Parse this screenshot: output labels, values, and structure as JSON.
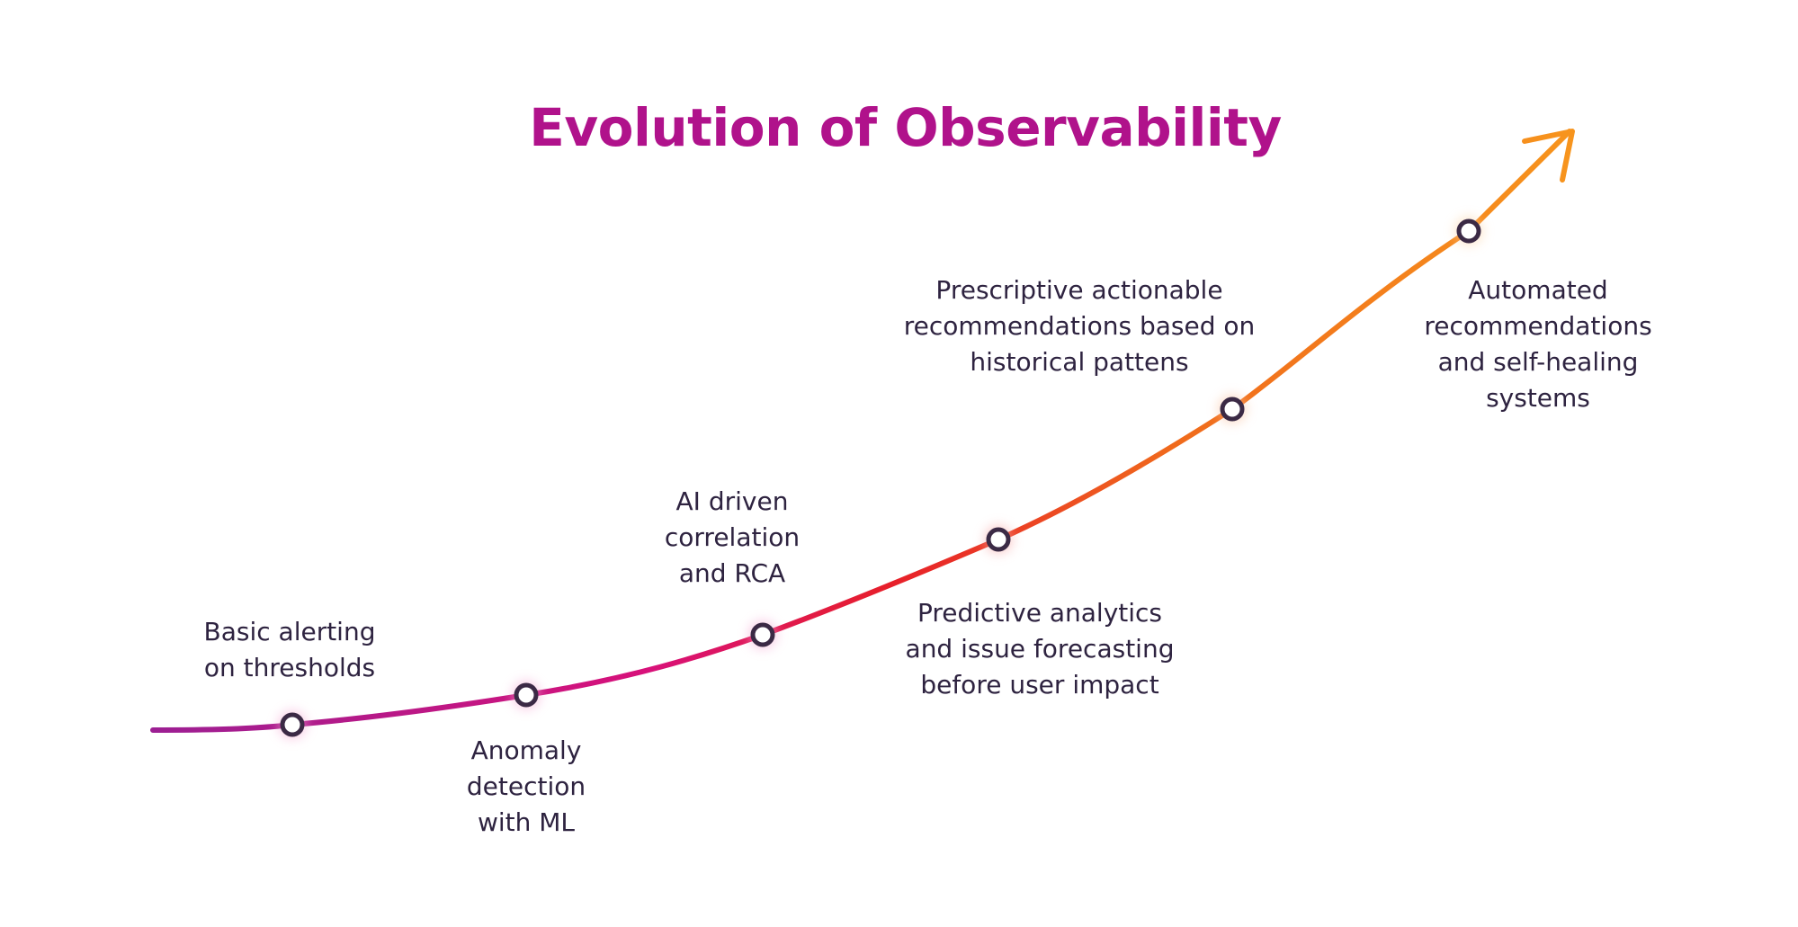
{
  "title": "Evolution of Observability",
  "colors": {
    "title": "#b0128b",
    "gradient_start": "#9c1f93",
    "gradient_mid1": "#d8117a",
    "gradient_mid2": "#e71f2a",
    "gradient_mid3": "#f06a1c",
    "gradient_end": "#f7941d",
    "node_stroke": "#3b2a45",
    "text": "#2e2340"
  },
  "milestones": [
    {
      "id": "basic-alerting",
      "lines": [
        "Basic alerting",
        "on thresholds"
      ]
    },
    {
      "id": "anomaly-detection",
      "lines": [
        "Anomaly",
        "detection",
        "with ML"
      ]
    },
    {
      "id": "ai-correlation",
      "lines": [
        "AI driven",
        "correlation",
        "and RCA"
      ]
    },
    {
      "id": "predictive-analytics",
      "lines": [
        "Predictive analytics",
        "and issue forecasting",
        "before user impact"
      ]
    },
    {
      "id": "prescriptive-recommendations",
      "lines": [
        "Prescriptive actionable",
        "recommendations based on",
        "historical pattens"
      ]
    },
    {
      "id": "automated-self-healing",
      "lines": [
        "Automated",
        "recommendations",
        "and self-healing",
        "systems"
      ]
    }
  ]
}
